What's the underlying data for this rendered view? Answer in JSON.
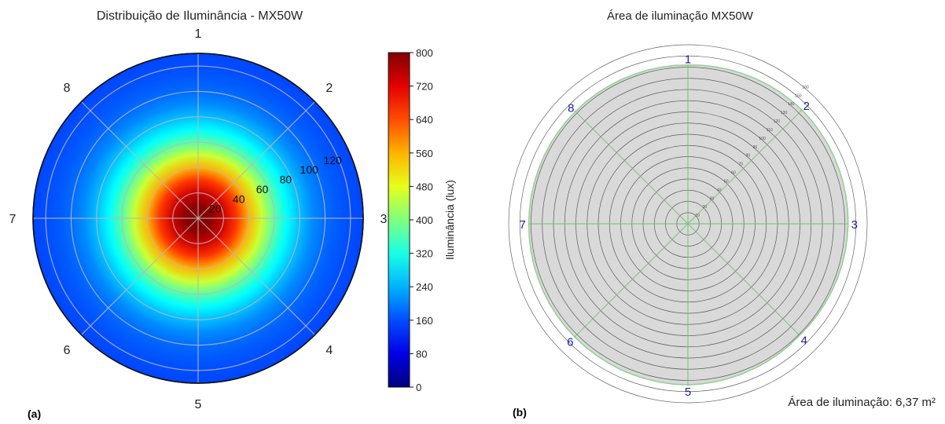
{
  "chart_data": [
    {
      "panel_label": "(a)",
      "type": "heatmap",
      "subtype": "polar",
      "title": "Distribuição de Iluminância - MX50W",
      "angular_labels": [
        "1",
        "2",
        "3",
        "4",
        "5",
        "6",
        "7",
        "8"
      ],
      "radial_ticks": [
        20,
        40,
        60,
        80,
        100,
        120
      ],
      "radial_tick_labels": [
        "20",
        "40",
        "60",
        "80",
        "100",
        "120"
      ],
      "rlim": [
        0,
        130
      ],
      "grid": true,
      "colormap": "jet",
      "colorbar": {
        "label": "Iluminância (lux)",
        "range": [
          0,
          800
        ],
        "ticks": [
          0,
          80,
          160,
          240,
          320,
          400,
          480,
          560,
          640,
          720,
          800
        ],
        "tick_labels": [
          "0",
          "80",
          "160",
          "240",
          "320",
          "400",
          "480",
          "560",
          "640",
          "720",
          "800"
        ],
        "placement": "right"
      },
      "illuminance_profile": {
        "r": [
          0,
          10,
          20,
          30,
          40,
          50,
          60,
          70,
          80,
          90,
          100,
          110,
          120,
          130
        ],
        "lux": [
          800,
          790,
          740,
          660,
          560,
          460,
          370,
          300,
          250,
          210,
          185,
          170,
          160,
          155
        ]
      }
    },
    {
      "panel_label": "(b)",
      "type": "area",
      "subtype": "polar",
      "title": "Área de iluminação MX50W",
      "angular_labels": [
        "1",
        "2",
        "3",
        "4",
        "5",
        "6",
        "7",
        "8"
      ],
      "radial_ticks": [
        10,
        20,
        30,
        40,
        50,
        60,
        70,
        80,
        90,
        100,
        110,
        120,
        130,
        140,
        150,
        160
      ],
      "radial_tick_labels": [
        "10",
        "20",
        "30",
        "40",
        "50",
        "60",
        "70",
        "80",
        "90",
        "100",
        "110",
        "120",
        "130",
        "140",
        "150",
        "160"
      ],
      "rlim": [
        0,
        160
      ],
      "grid": true,
      "illuminated_radius": [
        142,
        144,
        143,
        141,
        144,
        143,
        142,
        142
      ],
      "annotation": "Área de iluminação: 6,37 m²",
      "colors": {
        "fill": "#d9d9d9",
        "boundary": "#8fd18f",
        "grid": "#333333",
        "spokes": "#6cc36c",
        "labels": "#1f1fa0"
      }
    }
  ]
}
